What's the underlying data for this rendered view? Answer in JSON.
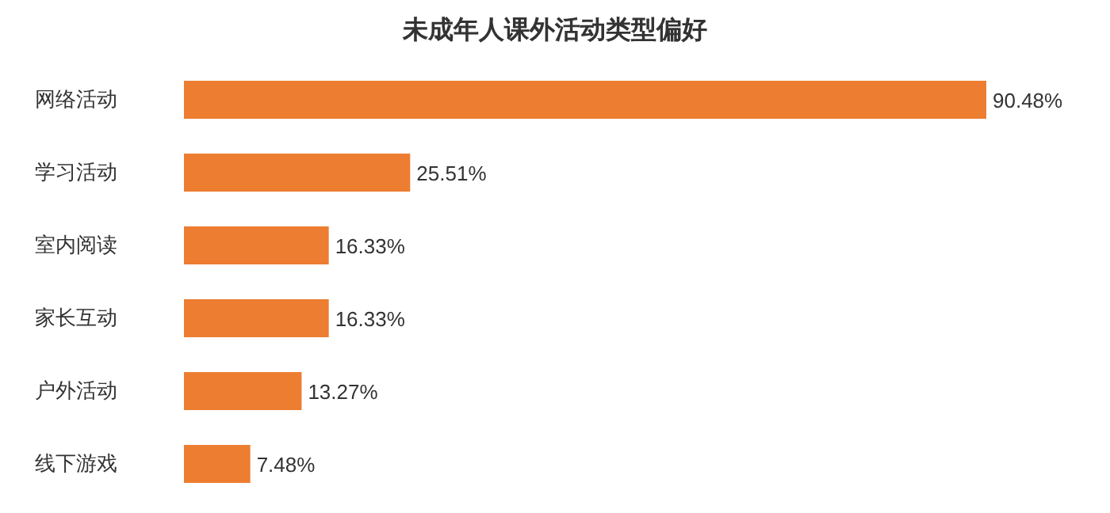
{
  "chart_data": {
    "type": "bar",
    "orientation": "horizontal",
    "title": "未成年人课外活动类型偏好",
    "categories": [
      "网络活动",
      "学习活动",
      "室内阅读",
      "家长互动",
      "户外活动",
      "线下游戏"
    ],
    "values": [
      90.48,
      25.51,
      16.33,
      16.33,
      13.27,
      7.48
    ],
    "value_labels": [
      "90.48%",
      "25.51%",
      "16.33%",
      "16.33%",
      "13.27%",
      "7.48%"
    ],
    "color": "#ed7d31"
  }
}
